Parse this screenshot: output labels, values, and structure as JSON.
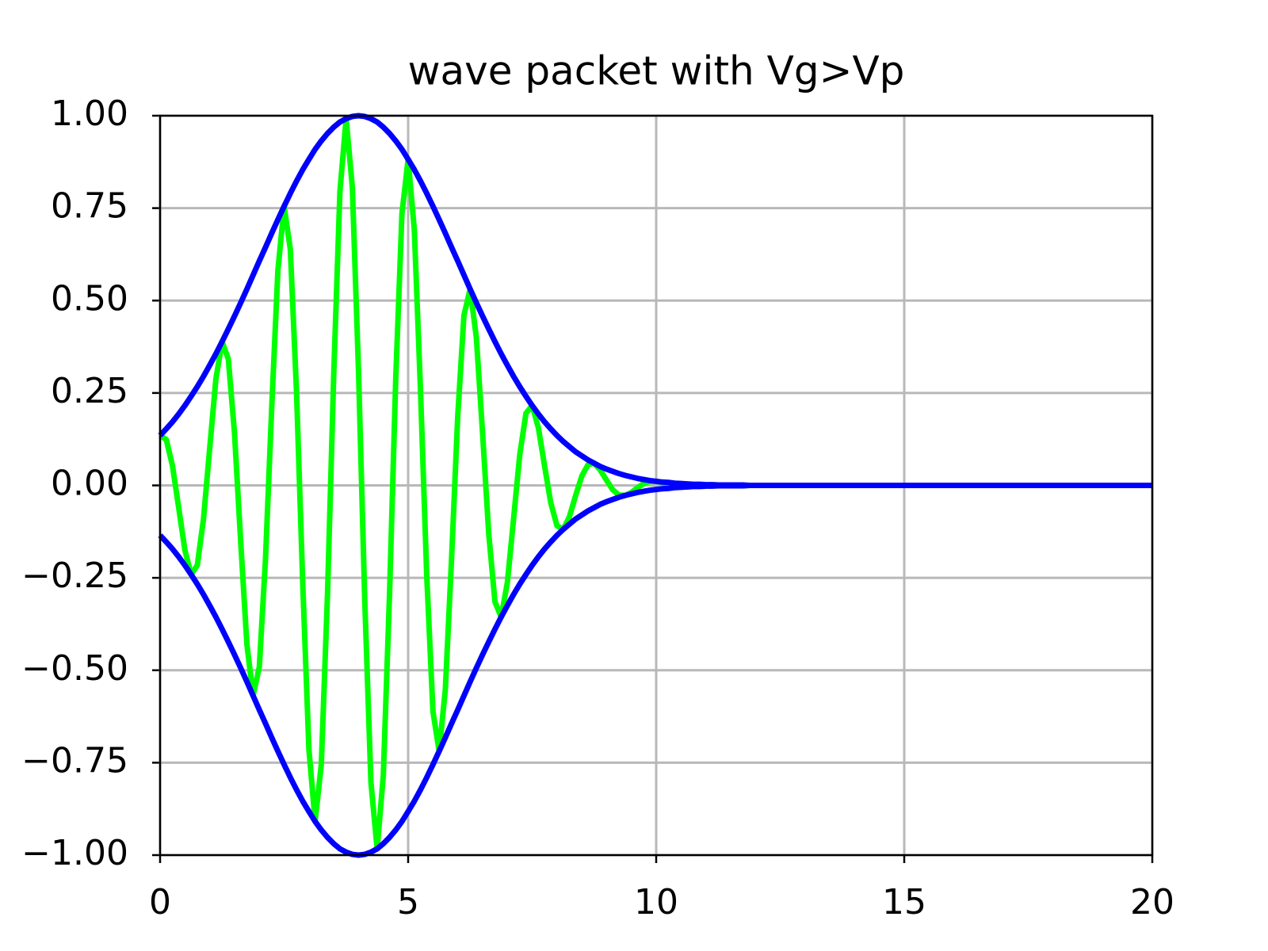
{
  "chart_data": {
    "type": "line",
    "title": "wave packet with Vg>Vp",
    "x": [
      0,
      0.125,
      0.25,
      0.375,
      0.5,
      0.625,
      0.75,
      0.875,
      1,
      1.125,
      1.25,
      1.375,
      1.5,
      1.625,
      1.75,
      1.875,
      2,
      2.125,
      2.25,
      2.375,
      2.5,
      2.625,
      2.75,
      2.875,
      3,
      3.125,
      3.25,
      3.375,
      3.5,
      3.625,
      3.75,
      3.875,
      4,
      4.125,
      4.25,
      4.375,
      4.5,
      4.625,
      4.75,
      4.875,
      5,
      5.125,
      5.25,
      5.375,
      5.5,
      5.625,
      5.75,
      5.875,
      6,
      6.125,
      6.25,
      6.375,
      6.5,
      6.625,
      6.75,
      6.875,
      7,
      7.125,
      7.25,
      7.375,
      7.5,
      7.625,
      7.75,
      7.875,
      8,
      8.125,
      8.25,
      8.375,
      8.5,
      8.625,
      8.75,
      8.875,
      9,
      9.125,
      9.25,
      9.375,
      9.5,
      9.625,
      9.75,
      9.875,
      10,
      10.125,
      10.25,
      10.375,
      10.5,
      10.625,
      10.75,
      10.875,
      11,
      11.125,
      11.25,
      11.375,
      11.5,
      11.625,
      11.75,
      11.875,
      12,
      20
    ],
    "series": [
      {
        "color": "#00ff00",
        "values": [
          0.135,
          0.124,
          0.053,
          -0.06,
          -0.175,
          -0.241,
          -0.216,
          -0.091,
          0.1,
          0.288,
          0.389,
          0.342,
          0.142,
          -0.153,
          -0.43,
          -0.569,
          -0.491,
          -0.199,
          0.211,
          0.582,
          0.755,
          0.639,
          0.254,
          -0.264,
          -0.714,
          -0.909,
          -0.754,
          -0.294,
          0.299,
          0.795,
          0.992,
          0.807,
          0.309,
          -0.308,
          -0.803,
          -0.983,
          -0.784,
          -0.294,
          0.288,
          0.735,
          0.882,
          0.691,
          0.254,
          -0.244,
          -0.611,
          -0.719,
          -0.552,
          -0.199,
          0.188,
          0.46,
          0.531,
          0.4,
          0.142,
          -0.131,
          -0.315,
          -0.356,
          -0.263,
          -0.091,
          0.083,
          0.195,
          0.216,
          0.156,
          0.053,
          -0.047,
          -0.109,
          -0.119,
          -0.085,
          -0.028,
          0.025,
          0.056,
          0.06,
          0.041,
          0.014,
          -0.012,
          -0.026,
          -0.027,
          -0.019,
          -0.006,
          0.005,
          0.011,
          0.011,
          0.007,
          0.002,
          -0.002,
          -0.004,
          -0.004,
          -0.002,
          -0.001,
          0.001,
          0.002,
          0.001,
          0.001,
          0,
          0,
          -0.001,
          0,
          0,
          0
        ]
      },
      {
        "color": "#0000ff",
        "values": [
          0.135,
          0.153,
          0.172,
          0.193,
          0.216,
          0.241,
          0.267,
          0.295,
          0.325,
          0.356,
          0.389,
          0.423,
          0.458,
          0.494,
          0.531,
          0.569,
          0.607,
          0.644,
          0.682,
          0.719,
          0.755,
          0.79,
          0.823,
          0.854,
          0.882,
          0.909,
          0.932,
          0.952,
          0.969,
          0.983,
          0.992,
          0.998,
          1,
          0.998,
          0.992,
          0.983,
          0.969,
          0.952,
          0.932,
          0.909,
          0.882,
          0.854,
          0.823,
          0.79,
          0.755,
          0.719,
          0.682,
          0.644,
          0.607,
          0.569,
          0.531,
          0.494,
          0.458,
          0.423,
          0.389,
          0.356,
          0.325,
          0.295,
          0.267,
          0.241,
          0.216,
          0.193,
          0.172,
          0.153,
          0.135,
          0.119,
          0.105,
          0.091,
          0.08,
          0.069,
          0.06,
          0.051,
          0.044,
          0.038,
          0.032,
          0.027,
          0.023,
          0.019,
          0.016,
          0.013,
          0.011,
          0.009,
          0.008,
          0.006,
          0.005,
          0.004,
          0.003,
          0.003,
          0.002,
          0.002,
          0.001,
          0.001,
          0.001,
          0.001,
          0.001,
          0,
          0,
          0
        ]
      },
      {
        "color": "#0000ff",
        "values": [
          -0.135,
          -0.153,
          -0.172,
          -0.193,
          -0.216,
          -0.241,
          -0.267,
          -0.295,
          -0.325,
          -0.356,
          -0.389,
          -0.423,
          -0.458,
          -0.494,
          -0.531,
          -0.569,
          -0.607,
          -0.644,
          -0.682,
          -0.719,
          -0.755,
          -0.79,
          -0.823,
          -0.854,
          -0.882,
          -0.909,
          -0.932,
          -0.952,
          -0.969,
          -0.983,
          -0.992,
          -0.998,
          -1,
          -0.998,
          -0.992,
          -0.983,
          -0.969,
          -0.952,
          -0.932,
          -0.909,
          -0.882,
          -0.854,
          -0.823,
          -0.79,
          -0.755,
          -0.719,
          -0.682,
          -0.644,
          -0.607,
          -0.569,
          -0.531,
          -0.494,
          -0.458,
          -0.423,
          -0.389,
          -0.356,
          -0.325,
          -0.295,
          -0.267,
          -0.241,
          -0.216,
          -0.193,
          -0.172,
          -0.153,
          -0.135,
          -0.119,
          -0.105,
          -0.091,
          -0.08,
          -0.069,
          -0.06,
          -0.051,
          -0.044,
          -0.038,
          -0.032,
          -0.027,
          -0.023,
          -0.019,
          -0.016,
          -0.013,
          -0.011,
          -0.009,
          -0.008,
          -0.006,
          -0.005,
          -0.004,
          -0.003,
          -0.003,
          -0.002,
          -0.002,
          -0.001,
          -0.001,
          -0.001,
          -0.001,
          -0.001,
          0,
          0,
          0
        ]
      }
    ],
    "xlim": [
      0,
      20
    ],
    "xticks": [
      0,
      5,
      10,
      15,
      20
    ],
    "ylim": [
      -1,
      1
    ],
    "yticks": [
      {
        "value": -1,
        "label": "−1.00"
      },
      {
        "value": -0.75,
        "label": "−0.75"
      },
      {
        "value": -0.5,
        "label": "−0.50"
      },
      {
        "value": -0.25,
        "label": "−0.25"
      },
      {
        "value": 0,
        "label": "0.00"
      },
      {
        "value": 0.25,
        "label": "0.25"
      },
      {
        "value": 0.5,
        "label": "0.50"
      },
      {
        "value": 0.75,
        "label": "0.75"
      },
      {
        "value": 1,
        "label": "1.00"
      }
    ],
    "grid": true
  }
}
